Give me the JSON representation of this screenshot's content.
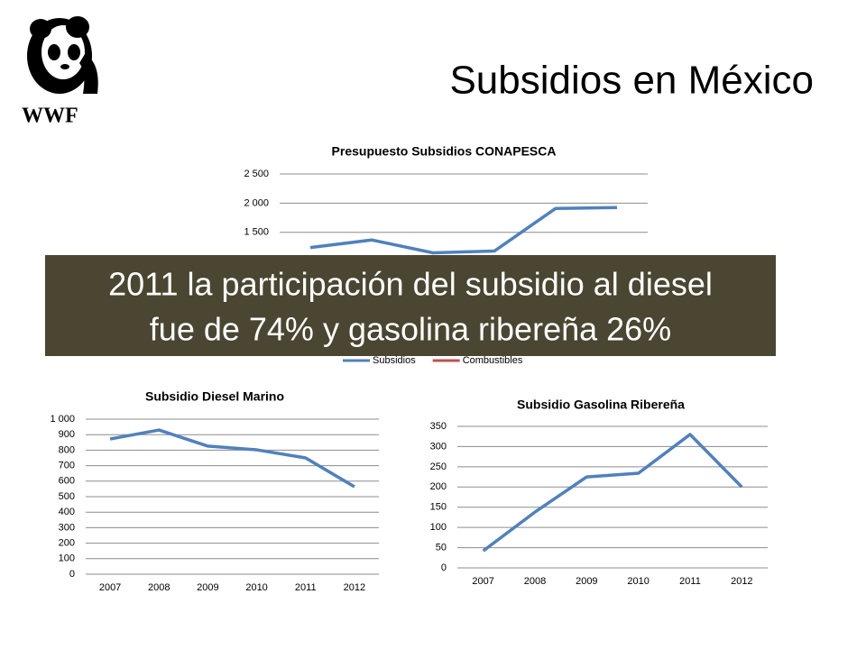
{
  "title": "Subsidios en México",
  "logo": "WWF",
  "banner": [
    "2011 la participación del subsidio al diesel",
    "fue de 74% y gasolina ribereña 26%"
  ],
  "chart_data": [
    {
      "type": "line",
      "title": "Presupuesto Subsidios CONAPESCA",
      "ylim": [
        0,
        2500
      ],
      "yticks": [
        {
          "value": 1500,
          "label": "1 500"
        },
        {
          "value": 2000,
          "label": "2 000"
        },
        {
          "value": 2500,
          "label": "2 500"
        }
      ],
      "grid": true,
      "legend": "bottom",
      "series": [
        {
          "name": "Subsidios",
          "color": "#4f81bd",
          "values": [
            1240,
            1370,
            1150,
            1180,
            1910,
            1925
          ]
        },
        {
          "name": "Combustibles",
          "color": "#c0504d",
          "values": [
            null,
            null,
            null,
            null,
            null,
            null
          ]
        }
      ]
    },
    {
      "type": "line",
      "title": "Subsidio Diesel Marino",
      "categories": [
        "2007",
        "2008",
        "2009",
        "2010",
        "2011",
        "2012"
      ],
      "ylim": [
        0,
        1000
      ],
      "yticks": [
        0,
        100,
        200,
        300,
        400,
        500,
        600,
        700,
        800,
        900,
        {
          "value": 1000,
          "label": "1 000"
        }
      ],
      "grid": true,
      "series": [
        {
          "color": "#4f81bd",
          "values": [
            872,
            930,
            826,
            802,
            750,
            564
          ]
        }
      ]
    },
    {
      "type": "line",
      "title": "Subsidio Gasolina Ribereña",
      "categories": [
        "2007",
        "2008",
        "2009",
        "2010",
        "2011",
        "2012"
      ],
      "ylim": [
        0,
        350
      ],
      "yticks": [
        0,
        50,
        100,
        150,
        200,
        250,
        300,
        350
      ],
      "grid": true,
      "series": [
        {
          "color": "#4f81bd",
          "values": [
            42,
            138,
            225,
            234,
            330,
            200
          ]
        }
      ]
    }
  ]
}
